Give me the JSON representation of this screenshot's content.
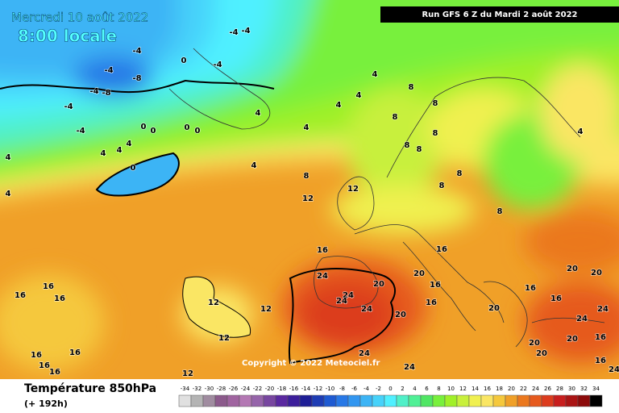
{
  "header": {
    "date": "Mercredi 10 août 2022",
    "time": "8:00 locale",
    "run": "Run GFS 6 Z du Mardi 2 août 2022"
  },
  "footer": {
    "copyright": "Copyright © 2022 Meteociel.fr",
    "field": "Température 850hPa",
    "lead": "(+ 192h)"
  },
  "scale": {
    "ticks": [
      -34,
      -32,
      -30,
      -28,
      -26,
      -24,
      -22,
      -20,
      -18,
      -16,
      -14,
      -12,
      -10,
      -8,
      -6,
      -4,
      -2,
      0,
      2,
      4,
      6,
      8,
      10,
      12,
      14,
      16,
      18,
      20,
      22,
      24,
      26,
      28,
      30,
      32,
      34
    ],
    "colors": [
      "#e0e0e0",
      "#b4b4b4",
      "#a08ca0",
      "#8c5a8c",
      "#a064a0",
      "#b478b4",
      "#9664aa",
      "#7846a0",
      "#5a28a0",
      "#3c1e9b",
      "#1e1e96",
      "#1e3cb4",
      "#1e5ad2",
      "#2878e6",
      "#3296f0",
      "#3cb4f5",
      "#46d2fa",
      "#50f0ff",
      "#50f0c8",
      "#50f096",
      "#50e664",
      "#78f03c",
      "#a0f028",
      "#c8f03c",
      "#f0f050",
      "#fae664",
      "#f5c83c",
      "#f0a028",
      "#eb781e",
      "#e65a1e",
      "#dc3c1e",
      "#c81e1e",
      "#aa1414",
      "#8c0a0a",
      "#000000"
    ]
  },
  "map": {
    "contour_labels": [
      "-4",
      "0",
      "-4",
      "-4",
      "-8",
      "-4",
      "-8",
      "-4",
      "-4",
      "0",
      "0",
      "0",
      "0",
      "4",
      "4",
      "4",
      "0",
      "4",
      "4",
      "-4",
      "-4",
      "4",
      "4",
      "4",
      "4",
      "4",
      "8",
      "8",
      "8",
      "8",
      "8",
      "8",
      "8",
      "8",
      "8",
      "4",
      "8",
      "4",
      "12",
      "12",
      "16",
      "16",
      "24",
      "24",
      "24",
      "24",
      "20",
      "20",
      "16",
      "16",
      "20",
      "20",
      "16",
      "20",
      "20",
      "16",
      "24",
      "24",
      "20",
      "16",
      "20",
      "20",
      "16",
      "24",
      "24",
      "24",
      "12",
      "12",
      "12",
      "16",
      "16",
      "16",
      "16",
      "16",
      "16",
      "16",
      "12"
    ]
  }
}
